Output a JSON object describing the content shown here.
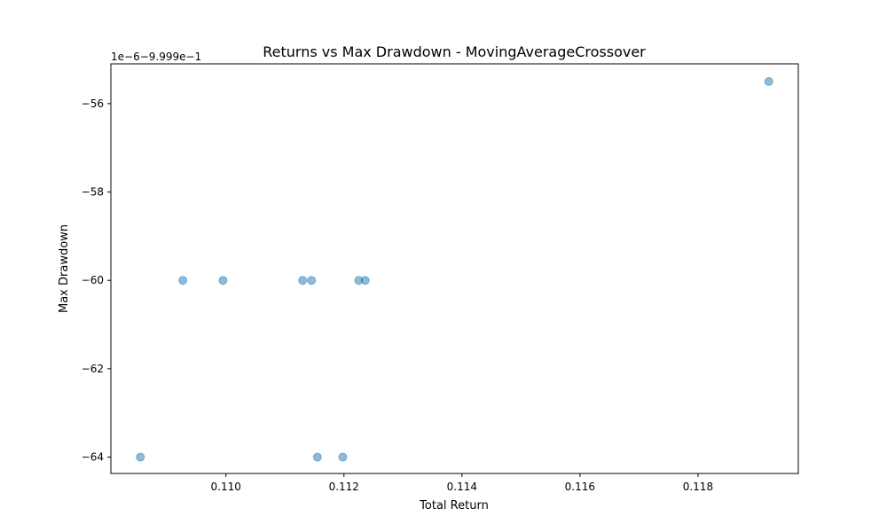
{
  "chart_data": {
    "type": "scatter",
    "title": "Returns vs Max Drawdown - MovingAverageCrossover",
    "xlabel": "Total Return",
    "ylabel": "Max Drawdown",
    "y_offset_label": "1e−6−9.999e−1",
    "xlim": [
      0.10805,
      0.1197
    ],
    "ylim": [
      -64.37,
      -55.1
    ],
    "x_ticks": [
      0.11,
      0.112,
      0.114,
      0.116,
      0.118
    ],
    "x_tick_labels": [
      "0.110",
      "0.112",
      "0.114",
      "0.116",
      "0.118"
    ],
    "y_ticks": [
      -64,
      -62,
      -60,
      -58,
      -56
    ],
    "y_tick_labels": [
      "−64",
      "−62",
      "−60",
      "−58",
      "−56"
    ],
    "grid": false,
    "marker_color": "#1f77b4",
    "marker_alpha": 0.5,
    "points": [
      {
        "x": 0.10855,
        "y": -64.0
      },
      {
        "x": 0.10927,
        "y": -60.0
      },
      {
        "x": 0.10995,
        "y": -60.0
      },
      {
        "x": 0.1113,
        "y": -60.0
      },
      {
        "x": 0.11145,
        "y": -60.0
      },
      {
        "x": 0.11155,
        "y": -64.0
      },
      {
        "x": 0.11198,
        "y": -64.0
      },
      {
        "x": 0.11225,
        "y": -60.0
      },
      {
        "x": 0.11236,
        "y": -60.0
      },
      {
        "x": 0.1192,
        "y": -55.5
      }
    ]
  }
}
